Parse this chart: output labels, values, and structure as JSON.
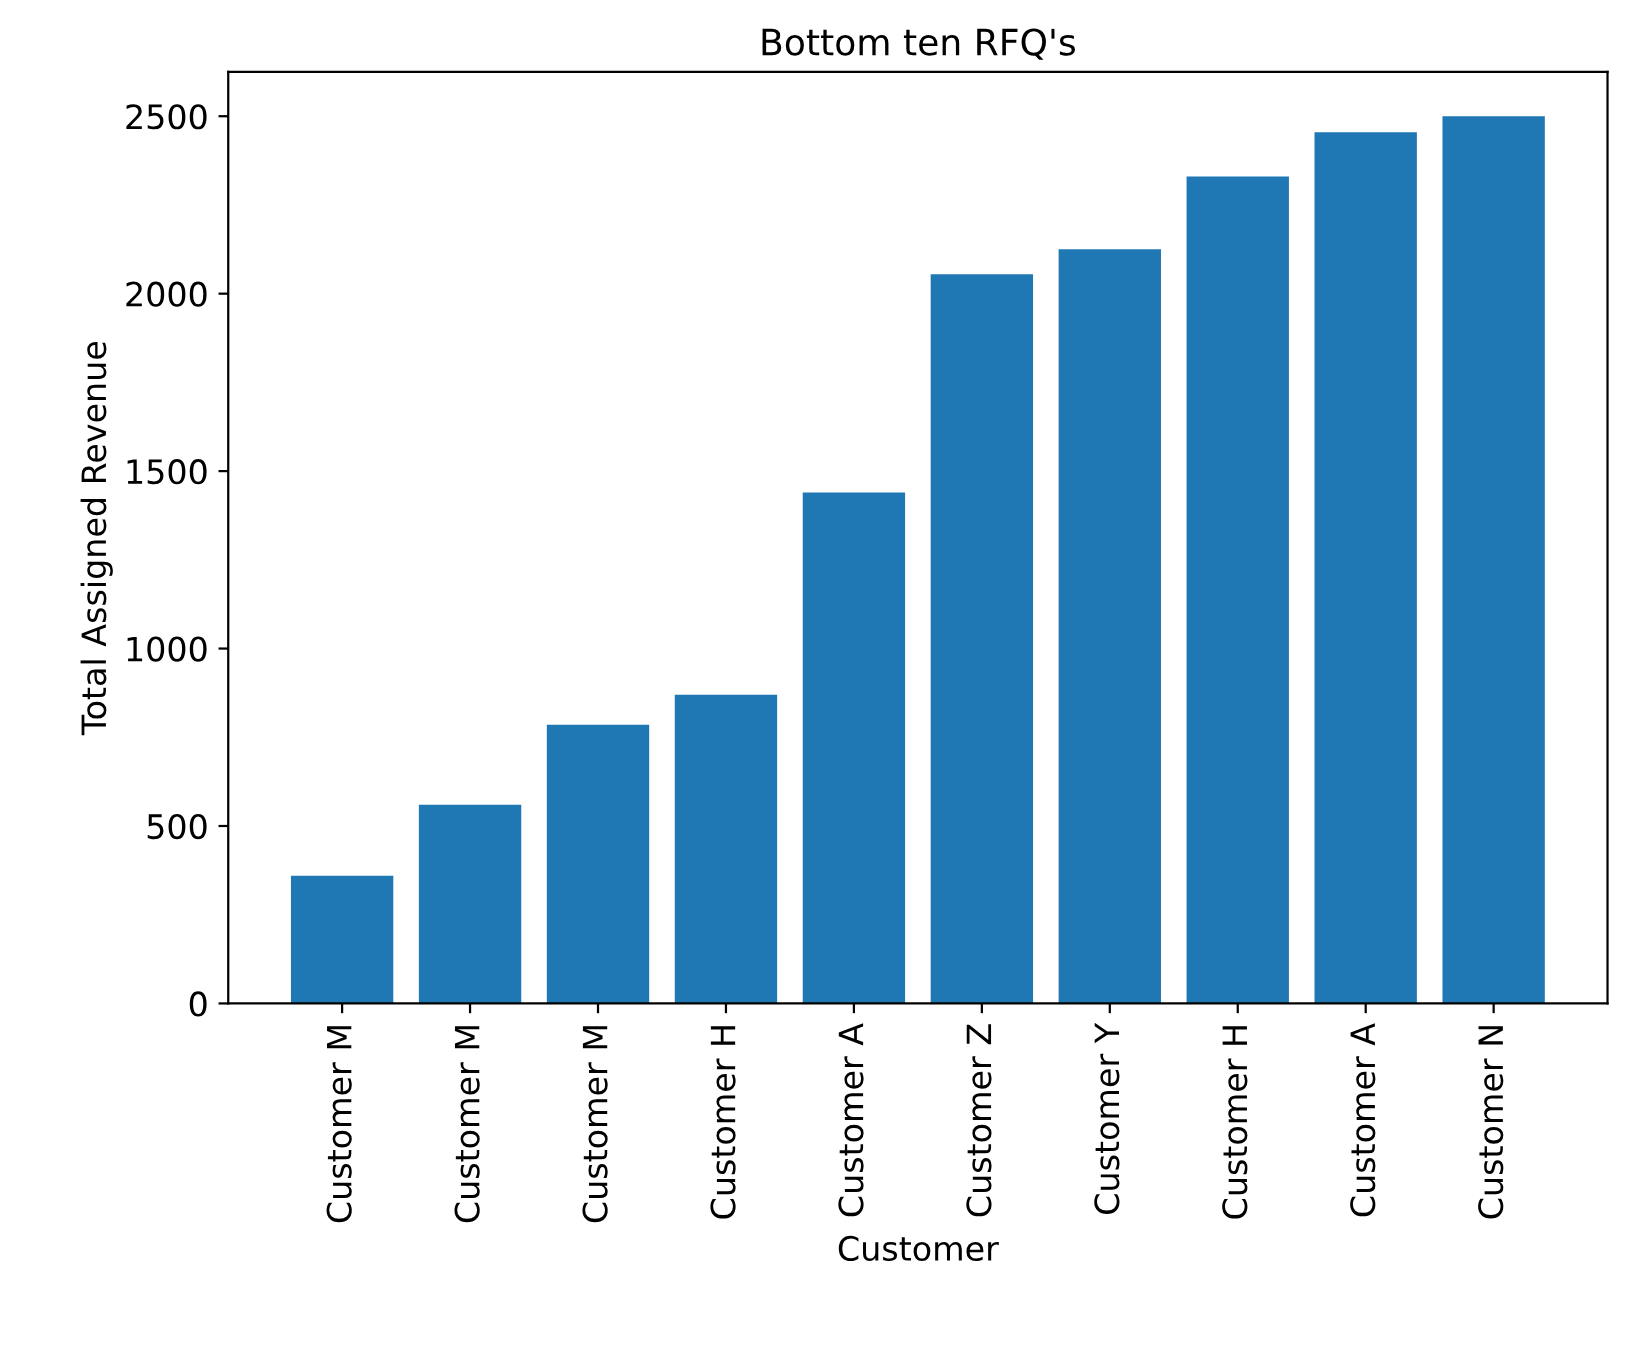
{
  "chart_data": {
    "type": "bar",
    "title": "Bottom ten RFQ's",
    "xlabel": "Customer",
    "ylabel": "Total Assigned Revenue",
    "categories": [
      "Customer M",
      "Customer M",
      "Customer M",
      "Customer H",
      "Customer A",
      "Customer Z",
      "Customer Y",
      "Customer H",
      "Customer A",
      "Customer N"
    ],
    "values": [
      360,
      560,
      785,
      870,
      1440,
      2055,
      2125,
      2330,
      2455,
      2500
    ],
    "color": "#1f77b4",
    "ylim": [
      0,
      2625
    ],
    "yticks": [
      0,
      500,
      1000,
      1500,
      2000,
      2500
    ],
    "grid": false,
    "legend": false
  }
}
